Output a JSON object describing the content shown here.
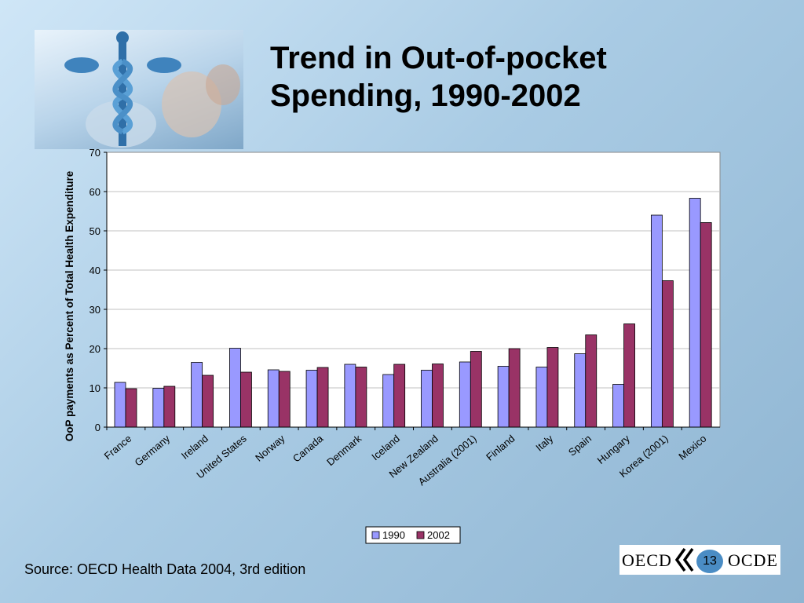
{
  "slide": {
    "title_line1": "Trend in Out-of-pocket",
    "title_line2": "Spending, 1990-2002",
    "source": "Source: OECD Health Data 2004, 3rd edition",
    "page_number": "13",
    "logo_left": "OECD",
    "logo_right": "OCDE"
  },
  "colors": {
    "series_1990": "#9999ff",
    "series_2002": "#993366",
    "plot_bg": "#ffffff",
    "grid": "#c0c0c0"
  },
  "chart_data": {
    "type": "bar",
    "title": "",
    "xlabel": "",
    "ylabel": "OoP payments as Percent of Total Health Expenditure",
    "ylim": [
      0,
      70
    ],
    "yticks": [
      0,
      10,
      20,
      30,
      40,
      50,
      60,
      70
    ],
    "grid": true,
    "legend_position": "bottom",
    "categories": [
      "France",
      "Germany",
      "Ireland",
      "United States",
      "Norway",
      "Canada",
      "Denmark",
      "Iceland",
      "New Zealand",
      "Australia (2001)",
      "Finland",
      "Italy",
      "Spain",
      "Hungary",
      "Korea (2001)",
      "Mexico"
    ],
    "series": [
      {
        "name": "1990",
        "values": [
          11.4,
          9.9,
          16.5,
          20.1,
          14.6,
          14.5,
          16.0,
          13.4,
          14.5,
          16.6,
          15.5,
          15.3,
          18.7,
          10.9,
          54.0,
          58.3
        ]
      },
      {
        "name": "2002",
        "values": [
          9.8,
          10.4,
          13.2,
          14.0,
          14.2,
          15.2,
          15.3,
          16.0,
          16.1,
          19.3,
          20.0,
          20.3,
          23.5,
          26.3,
          37.3,
          52.1
        ]
      }
    ]
  }
}
